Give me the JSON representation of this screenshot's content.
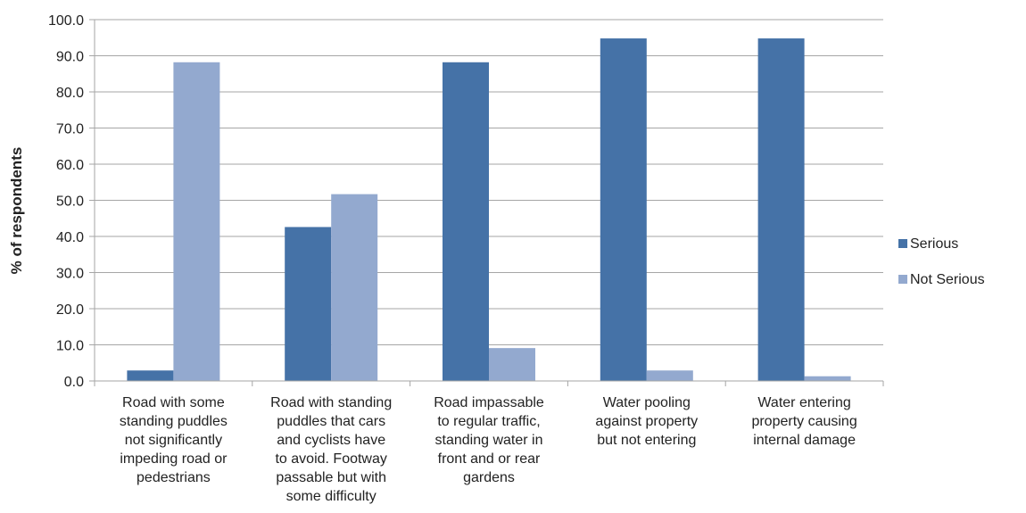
{
  "chart_data": {
    "type": "bar",
    "categories": [
      "Road with some standing puddles not significantly impeding road or pedestrians",
      "Road with standing puddles that cars and cyclists have to avoid. Footway passable but with some difficulty",
      "Road impassable to regular traffic, standing water in front and or rear gardens",
      "Water pooling against property but not entering",
      "Water entering property causing internal damage"
    ],
    "category_lines": [
      [
        "Road with some",
        "standing puddles",
        "not significantly",
        "impeding road or",
        "pedestrians"
      ],
      [
        "Road with standing",
        "puddles that cars",
        "and cyclists have",
        "to avoid. Footway",
        "passable but with",
        "some difficulty"
      ],
      [
        "Road impassable",
        "to regular traffic,",
        "standing water in",
        "front and or rear",
        "gardens"
      ],
      [
        "Water pooling",
        "against property",
        "but not entering"
      ],
      [
        "Water entering",
        "property causing",
        "internal damage"
      ]
    ],
    "series": [
      {
        "name": "Serious",
        "color": "#4572a7",
        "values": [
          2.9,
          42.6,
          88.2,
          94.8,
          94.8
        ]
      },
      {
        "name": "Not Serious",
        "color": "#93a9cf",
        "values": [
          88.2,
          51.7,
          9.1,
          2.9,
          1.3
        ]
      }
    ],
    "ylabel": "% of respondents",
    "ylim": [
      0,
      100
    ],
    "yticks": [
      "0.0",
      "10.0",
      "20.0",
      "30.0",
      "40.0",
      "50.0",
      "60.0",
      "70.0",
      "80.0",
      "90.0",
      "100.0"
    ],
    "grid": true,
    "gridColor": "#a6a6a6",
    "legend_position": "right"
  }
}
